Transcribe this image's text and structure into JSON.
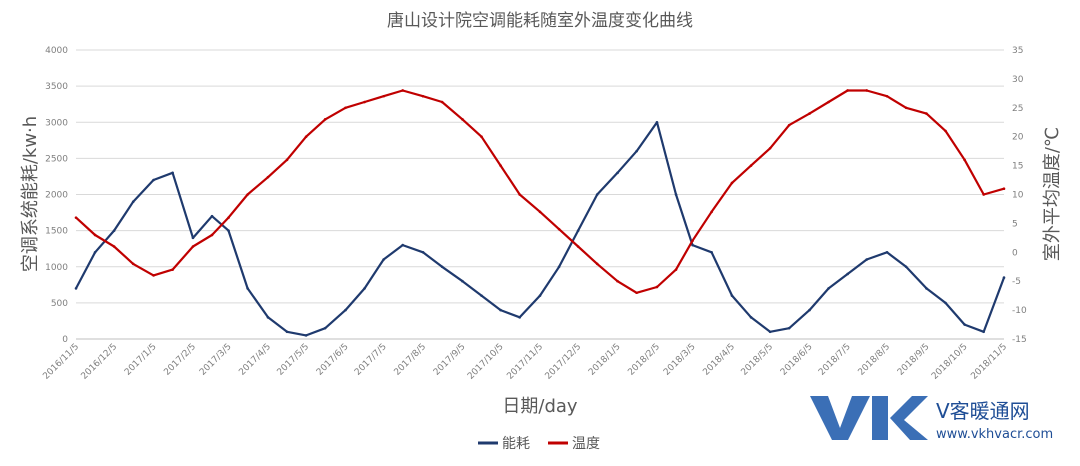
{
  "chart_data": {
    "type": "line",
    "title": "唐山设计院空调能耗随室外温度变化曲线",
    "xlabel": "日期/day",
    "ylabel_left": "空调系统能耗/kw·h",
    "ylabel_right": "室外平均温度/℃",
    "ylim_left": [
      0,
      4000
    ],
    "yticks_left": [
      "0",
      "500",
      "1000",
      "1500",
      "2000",
      "2500",
      "3000",
      "3500",
      "4000"
    ],
    "ylim_right": [
      -15,
      35
    ],
    "yticks_right": [
      "-15",
      "-10",
      "-5",
      "0",
      "5",
      "10",
      "15",
      "20",
      "25",
      "30",
      "35"
    ],
    "x_categories": [
      "2016/11/5",
      "2016/12/5",
      "2017/1/5",
      "2017/2/5",
      "2017/3/5",
      "2017/4/5",
      "2017/5/5",
      "2017/6/5",
      "2017/7/5",
      "2017/8/5",
      "2017/9/5",
      "2017/10/5",
      "2017/11/5",
      "2017/12/5",
      "2018/1/5",
      "2018/2/5",
      "2018/3/5",
      "2018/4/5",
      "2018/5/5",
      "2018/6/5",
      "2018/7/5",
      "2018/8/5",
      "2018/9/5",
      "2018/10/5",
      "2018/11/5"
    ],
    "grid": true,
    "legend": "bottom",
    "series": [
      {
        "name": "能耗",
        "axis": "left",
        "color": "#1f3a6e",
        "x": [
          "2016/11/5",
          "2016/11/20",
          "2016/12/5",
          "2016/12/20",
          "2017/1/5",
          "2017/1/20",
          "2017/2/5",
          "2017/2/20",
          "2017/3/5",
          "2017/3/20",
          "2017/4/5",
          "2017/4/20",
          "2017/5/5",
          "2017/5/20",
          "2017/6/5",
          "2017/6/20",
          "2017/7/5",
          "2017/7/20",
          "2017/8/5",
          "2017/8/20",
          "2017/9/5",
          "2017/9/20",
          "2017/10/5",
          "2017/10/20",
          "2017/11/5",
          "2017/11/20",
          "2017/12/5",
          "2017/12/20",
          "2018/1/5",
          "2018/1/20",
          "2018/2/5",
          "2018/2/20",
          "2018/3/5",
          "2018/3/20",
          "2018/4/5",
          "2018/4/20",
          "2018/5/5",
          "2018/5/20",
          "2018/6/5",
          "2018/6/20",
          "2018/7/5",
          "2018/7/20",
          "2018/8/5",
          "2018/8/20",
          "2018/9/5",
          "2018/9/20",
          "2018/10/5",
          "2018/10/20",
          "2018/11/5"
        ],
        "values": [
          700,
          1200,
          1500,
          1900,
          2200,
          2300,
          1400,
          1700,
          1500,
          700,
          300,
          100,
          50,
          150,
          400,
          700,
          1100,
          1300,
          1200,
          1000,
          800,
          600,
          400,
          300,
          600,
          1000,
          1500,
          2000,
          2300,
          2600,
          3000,
          2000,
          1300,
          1200,
          600,
          300,
          100,
          150,
          400,
          700,
          900,
          1100,
          1200,
          1000,
          700,
          500,
          200,
          100,
          850
        ]
      },
      {
        "name": "温度",
        "axis": "right",
        "color": "#c00000",
        "x": [
          "2016/11/5",
          "2016/11/20",
          "2016/12/5",
          "2016/12/20",
          "2017/1/5",
          "2017/1/20",
          "2017/2/5",
          "2017/2/20",
          "2017/3/5",
          "2017/3/20",
          "2017/4/5",
          "2017/4/20",
          "2017/5/5",
          "2017/5/20",
          "2017/6/5",
          "2017/6/20",
          "2017/7/5",
          "2017/7/20",
          "2017/8/5",
          "2017/8/20",
          "2017/9/5",
          "2017/9/20",
          "2017/10/5",
          "2017/10/20",
          "2017/11/5",
          "2017/11/20",
          "2017/12/5",
          "2017/12/20",
          "2018/1/5",
          "2018/1/20",
          "2018/2/5",
          "2018/2/20",
          "2018/3/5",
          "2018/3/20",
          "2018/4/5",
          "2018/4/20",
          "2018/5/5",
          "2018/5/20",
          "2018/6/5",
          "2018/6/20",
          "2018/7/5",
          "2018/7/20",
          "2018/8/5",
          "2018/8/20",
          "2018/9/5",
          "2018/9/20",
          "2018/10/5",
          "2018/10/20",
          "2018/11/5"
        ],
        "values": [
          6,
          3,
          1,
          -2,
          -4,
          -3,
          1,
          3,
          6,
          10,
          13,
          16,
          20,
          23,
          25,
          26,
          27,
          28,
          27,
          26,
          23,
          20,
          15,
          10,
          7,
          4,
          1,
          -2,
          -5,
          -7,
          -6,
          -3,
          2,
          7,
          12,
          15,
          18,
          22,
          24,
          26,
          28,
          28,
          27,
          25,
          24,
          21,
          16,
          10,
          11
        ]
      }
    ]
  },
  "watermark": {
    "brand": "V客暖通网",
    "url": "www.vkhvacr.com"
  }
}
